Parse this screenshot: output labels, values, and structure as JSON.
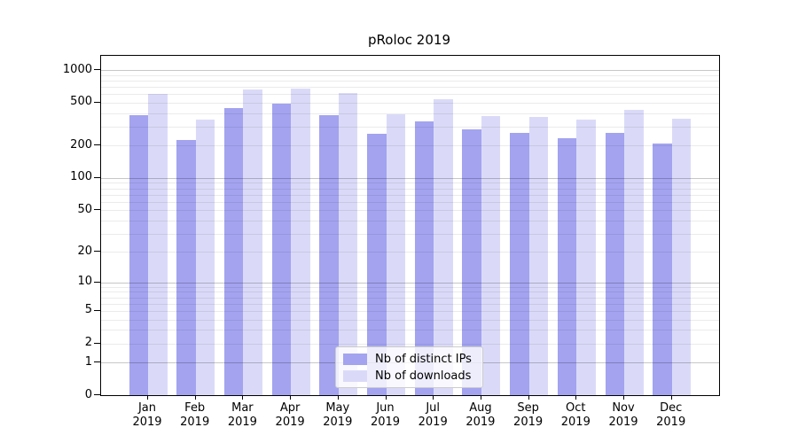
{
  "figure": {
    "background": "#ffffff",
    "spine_color": "#000000",
    "grid_minor_color": "#ebebeb",
    "grid_major_color": "#c7c7c7"
  },
  "chart_data": {
    "type": "bar",
    "title": "pRoloc 2019",
    "categories": [
      "Jan",
      "Feb",
      "Mar",
      "Apr",
      "May",
      "Jun",
      "Jul",
      "Aug",
      "Sep",
      "Oct",
      "Nov",
      "Dec"
    ],
    "category_year": "2019",
    "series": [
      {
        "name": "Nb of distinct IPs",
        "color": "#a3a3f0",
        "values": [
          380,
          224,
          447,
          491,
          379,
          259,
          336,
          285,
          261,
          233,
          264,
          210
        ]
      },
      {
        "name": "Nb of downloads",
        "color": "#dadaf8",
        "values": [
          605,
          350,
          660,
          675,
          608,
          389,
          536,
          378,
          369,
          347,
          429,
          355
        ]
      }
    ],
    "xlabel": "",
    "ylabel": "",
    "yscale": "log1p",
    "ylim": [
      0,
      1350
    ],
    "y_tick_values": [
      1000,
      500,
      200,
      100,
      50,
      20,
      10,
      5,
      2,
      1,
      0
    ],
    "y_tick_labels": [
      "1000",
      "500",
      "200",
      "100",
      "50",
      "20",
      "10",
      "5",
      "2",
      "1",
      "0"
    ],
    "y_major_gridlines": [
      1,
      10,
      100,
      1000
    ],
    "y_minor_gridlines": [
      2,
      3,
      4,
      5,
      6,
      7,
      8,
      9,
      20,
      30,
      40,
      50,
      60,
      70,
      80,
      90,
      200,
      300,
      400,
      500,
      600,
      700,
      800,
      900
    ],
    "grid": true,
    "legend_position": "lower center"
  },
  "legend": {
    "items": [
      {
        "label": "Nb of distinct IPs"
      },
      {
        "label": "Nb of downloads"
      }
    ]
  }
}
